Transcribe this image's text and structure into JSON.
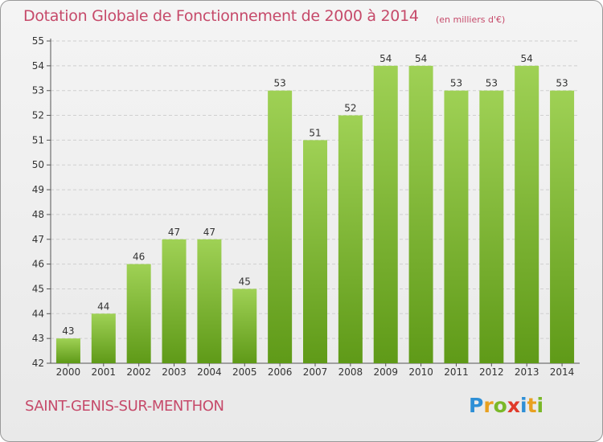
{
  "header": {
    "title": "Dotation Globale de Fonctionnement de 2000 à 2014",
    "subtitle": "(en milliers d'€)"
  },
  "footer": {
    "commune": "SAINT-GENIS-SUR-MENTHON",
    "logo_letters": [
      "P",
      "r",
      "o",
      "x",
      "i",
      "t",
      "i"
    ],
    "logo_colors": [
      "#2e8fd6",
      "#e8a020",
      "#7ab828",
      "#e03a2a",
      "#2e8fd6",
      "#e8a020",
      "#7ab828"
    ]
  },
  "colors": {
    "bar_top": "#9fd155",
    "bar_bottom": "#5f9a18",
    "grid": "#cfcfcf",
    "title": "#c64a6a"
  },
  "chart_data": {
    "type": "bar",
    "categories": [
      "2000",
      "2001",
      "2002",
      "2003",
      "2004",
      "2005",
      "2006",
      "2007",
      "2008",
      "2009",
      "2010",
      "2011",
      "2012",
      "2013",
      "2014"
    ],
    "values": [
      43,
      44,
      46,
      47,
      47,
      45,
      53,
      51,
      52,
      54,
      54,
      53,
      53,
      54,
      53
    ],
    "y_ticks": [
      42,
      43,
      44,
      45,
      46,
      47,
      48,
      49,
      50,
      51,
      52,
      53,
      54,
      55
    ],
    "ylim": [
      42,
      55
    ],
    "grid": true
  }
}
